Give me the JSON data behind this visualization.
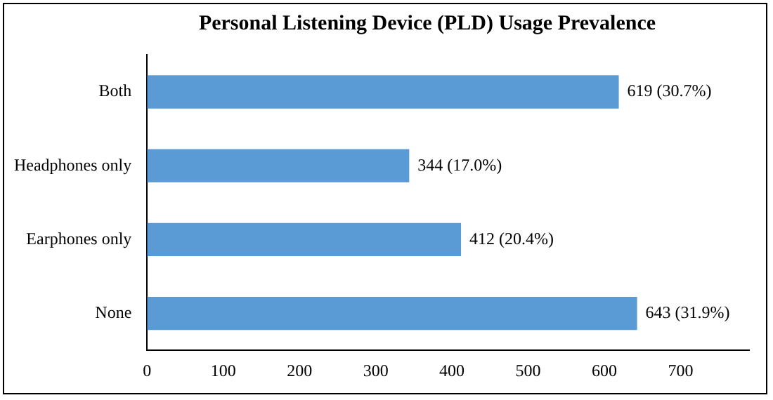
{
  "chart_data": {
    "type": "bar",
    "orientation": "horizontal",
    "title": "Personal Listening Device (PLD) Usage Prevalence",
    "categories": [
      "Both",
      "Headphones only",
      "Earphones only",
      "None"
    ],
    "values": [
      619,
      344,
      412,
      643
    ],
    "value_labels": [
      "619 (30.7%)",
      "344 (17.0%)",
      "412 (20.4%)",
      "643 (31.9%)"
    ],
    "color": "#5b9bd5",
    "xlim": [
      0,
      790
    ],
    "xticks": [
      0,
      100,
      200,
      300,
      400,
      500,
      600,
      700
    ],
    "grid": false,
    "legend": false
  }
}
